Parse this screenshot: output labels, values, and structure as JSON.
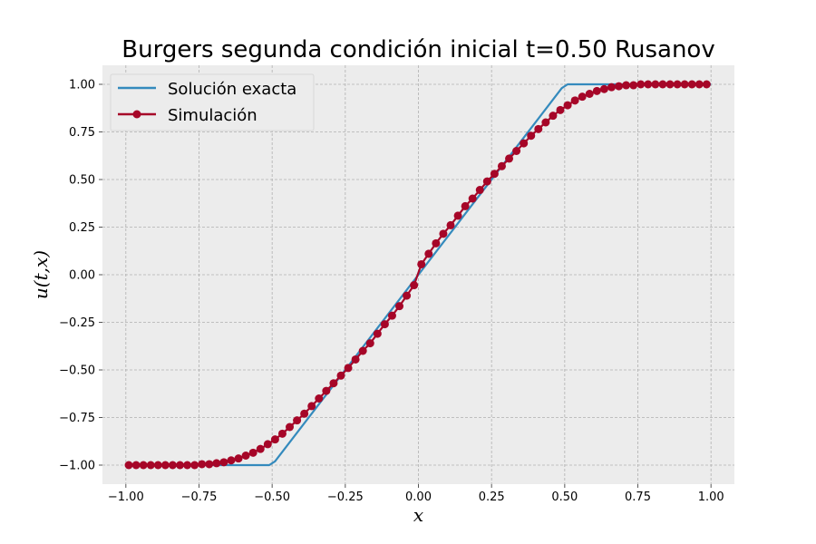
{
  "chart_data": {
    "type": "line",
    "title": "Burgers segunda condición inicial t=0.50 Rusanov",
    "xlabel": "x",
    "ylabel": "u(t,x)",
    "xlim": [
      -1.08,
      1.08
    ],
    "ylim": [
      -1.1,
      1.1
    ],
    "xticks": [
      -1.0,
      -0.75,
      -0.5,
      -0.25,
      0.0,
      0.25,
      0.5,
      0.75,
      1.0
    ],
    "xtick_labels": [
      "−1.00",
      "−0.75",
      "−0.50",
      "−0.25",
      "0.00",
      "0.25",
      "0.50",
      "0.75",
      "1.00"
    ],
    "yticks": [
      -1.0,
      -0.75,
      -0.5,
      -0.25,
      0.0,
      0.25,
      0.5,
      0.75,
      1.0
    ],
    "ytick_labels": [
      "−1.00",
      "−0.75",
      "−0.50",
      "−0.25",
      "0.00",
      "0.25",
      "0.50",
      "0.75",
      "1.00"
    ],
    "grid": true,
    "legend_position": "top-left",
    "background_color": "#ececec",
    "series": [
      {
        "name": "Solución exacta",
        "color": "#348abd",
        "style": "line",
        "x": [
          -1.0,
          -0.51,
          -0.49,
          0.0,
          0.49,
          0.51,
          1.0
        ],
        "y": [
          -1.0,
          -1.0,
          -0.98,
          0.0,
          0.98,
          1.0,
          1.0
        ]
      },
      {
        "name": "Simulación",
        "color": "#a60628",
        "style": "line-marker",
        "x": [
          -0.99,
          -0.965,
          -0.94,
          -0.915,
          -0.89,
          -0.865,
          -0.84,
          -0.815,
          -0.79,
          -0.765,
          -0.74,
          -0.715,
          -0.69,
          -0.665,
          -0.64,
          -0.615,
          -0.59,
          -0.565,
          -0.54,
          -0.515,
          -0.49,
          -0.465,
          -0.44,
          -0.415,
          -0.39,
          -0.365,
          -0.34,
          -0.315,
          -0.29,
          -0.265,
          -0.24,
          -0.215,
          -0.19,
          -0.165,
          -0.14,
          -0.115,
          -0.09,
          -0.065,
          -0.04,
          -0.015,
          0.01,
          0.035,
          0.06,
          0.085,
          0.11,
          0.135,
          0.16,
          0.185,
          0.21,
          0.235,
          0.26,
          0.285,
          0.31,
          0.335,
          0.36,
          0.385,
          0.41,
          0.435,
          0.46,
          0.485,
          0.51,
          0.535,
          0.56,
          0.585,
          0.61,
          0.635,
          0.66,
          0.685,
          0.71,
          0.735,
          0.76,
          0.785,
          0.81,
          0.835,
          0.86,
          0.885,
          0.91,
          0.935,
          0.96,
          0.985
        ],
        "y": [
          -1.0,
          -1.0,
          -1.0,
          -1.0,
          -1.0,
          -1.0,
          -1.0,
          -1.0,
          -1.0,
          -1.0,
          -0.995,
          -0.995,
          -0.99,
          -0.985,
          -0.975,
          -0.965,
          -0.95,
          -0.935,
          -0.915,
          -0.89,
          -0.865,
          -0.835,
          -0.8,
          -0.765,
          -0.73,
          -0.69,
          -0.65,
          -0.61,
          -0.57,
          -0.53,
          -0.49,
          -0.445,
          -0.4,
          -0.36,
          -0.31,
          -0.26,
          -0.215,
          -0.165,
          -0.11,
          -0.055,
          0.055,
          0.11,
          0.165,
          0.215,
          0.26,
          0.31,
          0.36,
          0.4,
          0.445,
          0.49,
          0.53,
          0.57,
          0.61,
          0.65,
          0.69,
          0.73,
          0.765,
          0.8,
          0.835,
          0.865,
          0.89,
          0.915,
          0.935,
          0.95,
          0.965,
          0.975,
          0.985,
          0.99,
          0.995,
          0.995,
          1.0,
          1.0,
          1.0,
          1.0,
          1.0,
          1.0,
          1.0,
          1.0,
          1.0,
          1.0
        ]
      }
    ]
  }
}
